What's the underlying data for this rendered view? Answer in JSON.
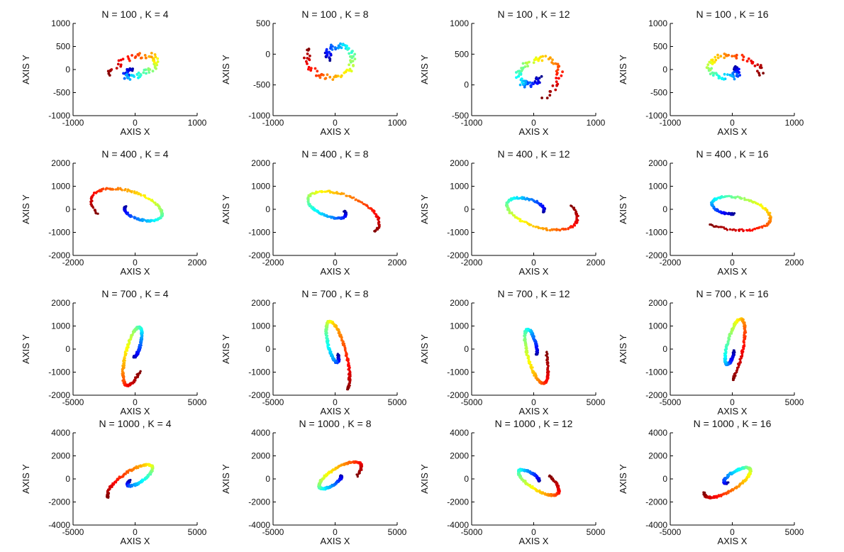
{
  "chart_data": [
    {
      "type": "scatter",
      "title": "N = 100 , K = 4",
      "xlabel": "AXIS X",
      "ylabel": "AXIS Y",
      "xlim": [
        -1000,
        1000
      ],
      "ylim": [
        -1000,
        1000
      ],
      "xticks": [
        "-1000",
        "0",
        "1000"
      ],
      "yticks": [
        "-1000",
        "-500",
        "0",
        "500",
        "1000"
      ],
      "spiral": {
        "a": 550,
        "b": 280,
        "tilt": 35,
        "cx": 0,
        "cy": 0
      },
      "rot": 0.3,
      "dir": 1,
      "pts": 100
    },
    {
      "type": "scatter",
      "title": "N = 100 , K = 8",
      "xlabel": "AXIS X",
      "ylabel": "AXIS Y",
      "xlim": [
        -1000,
        1000
      ],
      "ylim": [
        -1000,
        500
      ],
      "xticks": [
        "-1000",
        "0",
        "1000"
      ],
      "yticks": [
        "-1000",
        "-500",
        "0",
        "500"
      ],
      "spiral": {
        "a": 480,
        "b": 420,
        "tilt": 10,
        "cx": 0,
        "cy": -50
      },
      "rot": 0.5,
      "dir": -1,
      "pts": 100
    },
    {
      "type": "scatter",
      "title": "N = 100 , K = 12",
      "xlabel": "AXIS X",
      "ylabel": "AXIS Y",
      "xlim": [
        -1000,
        1000
      ],
      "ylim": [
        -500,
        1000
      ],
      "xticks": [
        "-1000",
        "0",
        "1000"
      ],
      "yticks": [
        "-500",
        "0",
        "500",
        "1000"
      ],
      "spiral": {
        "a": 500,
        "b": 380,
        "tilt": 25,
        "cx": 0,
        "cy": 150
      },
      "rot": 0.85,
      "dir": -1,
      "pts": 100
    },
    {
      "type": "scatter",
      "title": "N = 100 , K = 16",
      "xlabel": "AXIS X",
      "ylabel": "AXIS Y",
      "xlim": [
        -1000,
        1000
      ],
      "ylim": [
        -1000,
        1000
      ],
      "xticks": [
        "-1000",
        "0",
        "1000"
      ],
      "yticks": [
        "-1000",
        "-500",
        "0",
        "500",
        "1000"
      ],
      "spiral": {
        "a": 520,
        "b": 360,
        "tilt": -10,
        "cx": -50,
        "cy": 0
      },
      "rot": 0.1,
      "dir": -1,
      "pts": 100
    },
    {
      "type": "scatter",
      "title": "N = 400 , K = 4",
      "xlabel": "AXIS X",
      "ylabel": "AXIS Y",
      "xlim": [
        -2000,
        2000
      ],
      "ylim": [
        -2000,
        2000
      ],
      "xticks": [
        "-2000",
        "0",
        "2000"
      ],
      "yticks": [
        "-2000",
        "-1000",
        "0",
        "1000",
        "2000"
      ],
      "spiral": {
        "a": 1650,
        "b": 900,
        "tilt": -28,
        "cx": 0,
        "cy": 0
      },
      "rot": 0.55,
      "dir": 1,
      "pts": 400
    },
    {
      "type": "scatter",
      "title": "N = 400 , K = 8",
      "xlabel": "AXIS X",
      "ylabel": "AXIS Y",
      "xlim": [
        -2000,
        2000
      ],
      "ylim": [
        -2000,
        2000
      ],
      "xticks": [
        "-2000",
        "0",
        "2000"
      ],
      "yticks": [
        "-2000",
        "-1000",
        "0",
        "1000",
        "2000"
      ],
      "spiral": {
        "a": 1650,
        "b": 900,
        "tilt": -28,
        "cx": 0,
        "cy": 0
      },
      "rot": 0.05,
      "dir": -1,
      "pts": 400
    },
    {
      "type": "scatter",
      "title": "N = 400 , K = 12",
      "xlabel": "AXIS X",
      "ylabel": "AXIS Y",
      "xlim": [
        -2000,
        2000
      ],
      "ylim": [
        -2000,
        2000
      ],
      "xticks": [
        "-2000",
        "0",
        "2000"
      ],
      "yticks": [
        "-2000",
        "-1000",
        "0",
        "1000",
        "2000"
      ],
      "spiral": {
        "a": 1650,
        "b": 900,
        "tilt": -28,
        "cx": 0,
        "cy": 0
      },
      "rot": 0.05,
      "dir": 1,
      "pts": 400
    },
    {
      "type": "scatter",
      "title": "N = 400 , K = 16",
      "xlabel": "AXIS X",
      "ylabel": "AXIS Y",
      "xlim": [
        -2000,
        2000
      ],
      "ylim": [
        -2000,
        2000
      ],
      "xticks": [
        "-2000",
        "0",
        "2000"
      ],
      "yticks": [
        "-2000",
        "-1000",
        "0",
        "1000",
        "2000"
      ],
      "spiral": {
        "a": 1650,
        "b": 900,
        "tilt": -18,
        "cx": 0,
        "cy": 0
      },
      "rot": 0.8,
      "dir": -1,
      "pts": 400
    },
    {
      "type": "scatter",
      "title": "N = 700 , K = 4",
      "xlabel": "AXIS X",
      "ylabel": "AXIS Y",
      "xlim": [
        -5000,
        5000
      ],
      "ylim": [
        -2000,
        2000
      ],
      "xticks": [
        "-5000",
        "0",
        "5000"
      ],
      "yticks": [
        "-2000",
        "-1000",
        "0",
        "1000",
        "2000"
      ],
      "spiral": {
        "a": 2000,
        "b": 850,
        "tilt": 60,
        "cx": 0,
        "cy": 0
      },
      "rot": 0.6,
      "dir": 1,
      "pts": 700
    },
    {
      "type": "scatter",
      "title": "N = 700 , K = 8",
      "xlabel": "AXIS X",
      "ylabel": "AXIS Y",
      "xlim": [
        -5000,
        5000
      ],
      "ylim": [
        -2000,
        2000
      ],
      "xticks": [
        "-5000",
        "0",
        "5000"
      ],
      "yticks": [
        "-2000",
        "-1000",
        "0",
        "1000",
        "2000"
      ],
      "spiral": {
        "a": 2000,
        "b": 850,
        "tilt": -60,
        "cx": 0,
        "cy": 0
      },
      "rot": 0.1,
      "dir": -1,
      "pts": 700
    },
    {
      "type": "scatter",
      "title": "N = 700 , K = 12",
      "xlabel": "AXIS X",
      "ylabel": "AXIS Y",
      "xlim": [
        -5000,
        5000
      ],
      "ylim": [
        -2000,
        2000
      ],
      "xticks": [
        "-5000",
        "0",
        "5000"
      ],
      "yticks": [
        "-2000",
        "-1000",
        "0",
        "1000",
        "2000"
      ],
      "spiral": {
        "a": 2000,
        "b": 850,
        "tilt": -60,
        "cx": 0,
        "cy": 0
      },
      "rot": 0.1,
      "dir": 1,
      "pts": 700
    },
    {
      "type": "scatter",
      "title": "N = 700 , K = 16",
      "xlabel": "AXIS X",
      "ylabel": "AXIS Y",
      "xlim": [
        -5000,
        5000
      ],
      "ylim": [
        -2000,
        2000
      ],
      "xticks": [
        "-5000",
        "0",
        "5000"
      ],
      "yticks": [
        "-2000",
        "-1000",
        "0",
        "1000",
        "2000"
      ],
      "spiral": {
        "a": 2000,
        "b": 850,
        "tilt": 60,
        "cx": 0,
        "cy": 0
      },
      "rot": 0.75,
      "dir": -1,
      "pts": 700
    },
    {
      "type": "scatter",
      "title": "N = 1000 , K = 4",
      "xlabel": "AXIS X",
      "ylabel": "AXIS Y",
      "xlim": [
        -5000,
        5000
      ],
      "ylim": [
        -4000,
        4000
      ],
      "xticks": [
        "-5000",
        "0",
        "5000"
      ],
      "yticks": [
        "-4000",
        "-2000",
        "0",
        "2000",
        "4000"
      ],
      "spiral": {
        "a": 2700,
        "b": 1000,
        "tilt": 35,
        "cx": 0,
        "cy": 0
      },
      "rot": 0.4,
      "dir": 1,
      "pts": 1000
    },
    {
      "type": "scatter",
      "title": "N = 1000 , K = 8",
      "xlabel": "AXIS X",
      "ylabel": "AXIS Y",
      "xlim": [
        -5000,
        5000
      ],
      "ylim": [
        -4000,
        4000
      ],
      "xticks": [
        "-5000",
        "0",
        "5000"
      ],
      "yticks": [
        "-4000",
        "-2000",
        "0",
        "2000",
        "4000"
      ],
      "spiral": {
        "a": 2700,
        "b": 1000,
        "tilt": 35,
        "cx": 0,
        "cy": 0
      },
      "rot": 0.95,
      "dir": -1,
      "pts": 1000
    },
    {
      "type": "scatter",
      "title": "N = 1000 , K = 12",
      "xlabel": "AXIS X",
      "ylabel": "AXIS Y",
      "xlim": [
        -5000,
        5000
      ],
      "ylim": [
        -4000,
        4000
      ],
      "xticks": [
        "-5000",
        "0",
        "5000"
      ],
      "yticks": [
        "-4000",
        "-2000",
        "0",
        "2000",
        "4000"
      ],
      "spiral": {
        "a": 2700,
        "b": 1000,
        "tilt": -35,
        "cx": 0,
        "cy": 0
      },
      "rot": 0.1,
      "dir": 1,
      "pts": 1000
    },
    {
      "type": "scatter",
      "title": "N = 1000 , K = 16",
      "xlabel": "AXIS X",
      "ylabel": "AXIS Y",
      "xlim": [
        -5000,
        5000
      ],
      "ylim": [
        -4000,
        4000
      ],
      "xticks": [
        "-5000",
        "0",
        "5000"
      ],
      "yticks": [
        "-4000",
        "-2000",
        "0",
        "2000",
        "4000"
      ],
      "spiral": {
        "a": 2700,
        "b": 1000,
        "tilt": 35,
        "cx": 0,
        "cy": 0
      },
      "rot": 0.55,
      "dir": -1,
      "pts": 1000
    }
  ],
  "colormap": [
    "#00008f",
    "#0000ff",
    "#0080ff",
    "#00ffff",
    "#80ff80",
    "#ffff00",
    "#ff8000",
    "#ff0000",
    "#800000"
  ]
}
